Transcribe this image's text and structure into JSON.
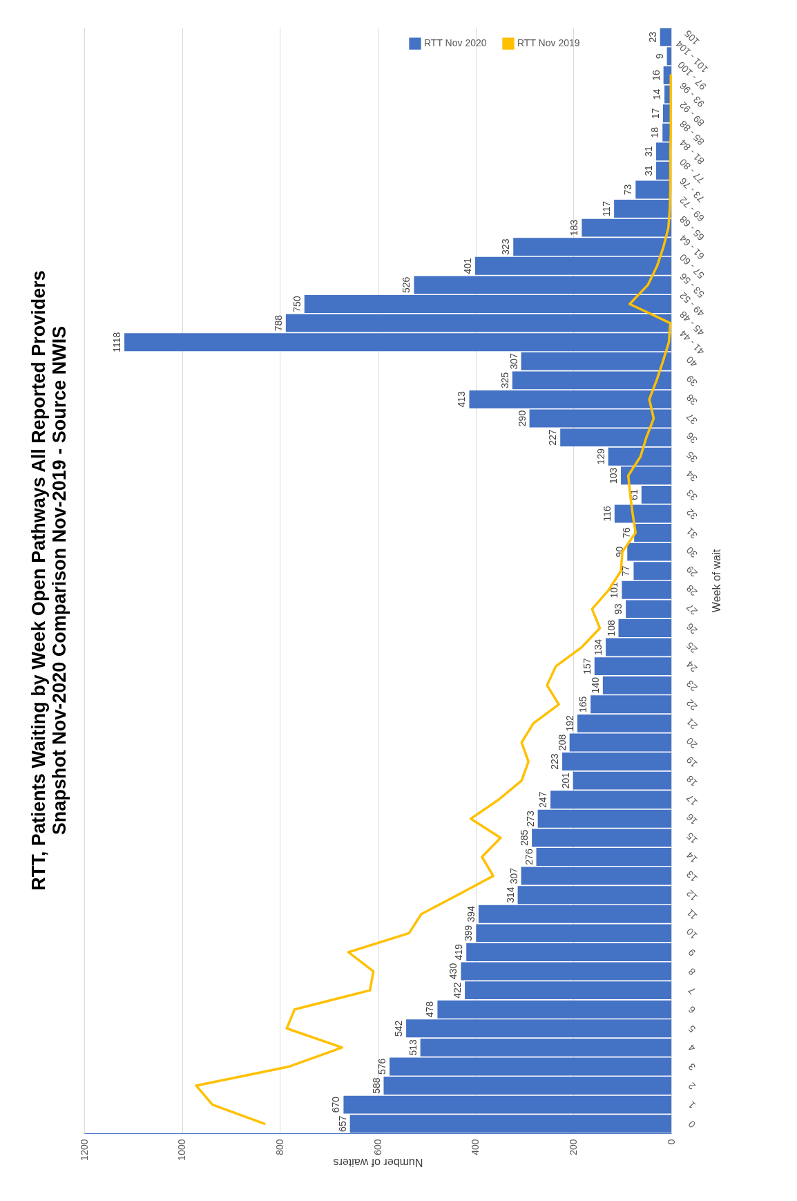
{
  "chart_data": {
    "type": "bar",
    "orientation": "horizontal",
    "title": "RTT, Patients Waiting by Week Open Pathways All Reported Providers",
    "subtitle": "Snapshot Nov-2020 Comparison Nov-2019 - Source NWIS",
    "xlabel": "Number of waiters",
    "ylabel": "Week of wait",
    "categories": [
      "105",
      "101 - 104",
      "97 - 100",
      "93 - 96",
      "89 - 92",
      "85 - 88",
      "81 - 84",
      "77 - 80",
      "73 - 76",
      "69 - 72",
      "65 - 68",
      "61 - 64",
      "57 - 60",
      "53 - 56",
      "49 - 52",
      "45 - 48",
      "41 - 44",
      "40",
      "39",
      "38",
      "37",
      "36",
      "35",
      "34",
      "33",
      "32",
      "31",
      "30",
      "29",
      "28",
      "27",
      "26",
      "25",
      "24",
      "23",
      "22",
      "21",
      "20",
      "19",
      "18",
      "17",
      "16",
      "15",
      "14",
      "13",
      "12",
      "11",
      "10",
      "9",
      "8",
      "7",
      "6",
      "5",
      "4",
      "3",
      "2",
      "1",
      "0"
    ],
    "series": [
      {
        "name": "RTT Nov 2020",
        "color": "#4472c4",
        "values": [
          23,
          9,
          16,
          14,
          17,
          18,
          31,
          31,
          73,
          117,
          183,
          323,
          401,
          526,
          750,
          788,
          1118,
          307,
          325,
          413,
          290,
          227,
          129,
          103,
          61,
          116,
          76,
          90,
          77,
          101,
          93,
          108,
          134,
          157,
          140,
          165,
          192,
          208,
          223,
          201,
          247,
          273,
          285,
          276,
          307,
          314,
          394,
          399,
          419,
          430,
          422,
          478,
          542,
          513,
          576,
          588,
          670,
          657
        ],
        "value_labels": [
          "23",
          "9",
          "16",
          "14",
          "17",
          "18",
          "31",
          "31",
          "73",
          "117",
          "183",
          "323",
          "401",
          "526",
          "750",
          "788",
          "1118",
          "307",
          "325",
          "413",
          "290",
          "227",
          "129",
          "103",
          "61",
          "116",
          "76",
          "90",
          "77",
          "101",
          "93",
          "108",
          "134",
          "157",
          "140",
          "165",
          "192",
          "208",
          "223",
          "201",
          "247",
          "273",
          "285",
          "276",
          "307",
          "314",
          "394",
          "399",
          "419",
          "430",
          "422",
          "478",
          "542",
          "513",
          "576",
          "588",
          "670",
          "657"
        ]
      },
      {
        "name": "RTT Nov 2019",
        "type": "line",
        "color": "#ffc000",
        "values": [
          null,
          null,
          1,
          1,
          1,
          1,
          2,
          2,
          2,
          3,
          6,
          16,
          29,
          48,
          85,
          2,
          5,
          17,
          30,
          45,
          36,
          51,
          63,
          88,
          84,
          79,
          73,
          100,
          103,
          128,
          162,
          146,
          183,
          236,
          254,
          230,
          282,
          306,
          292,
          306,
          353,
          410,
          349,
          387,
          364,
          437,
          511,
          536,
          660,
          609,
          616,
          770,
          786,
          673,
          781,
          971,
          938,
          832
        ]
      }
    ],
    "xlim": [
      1200,
      0
    ],
    "xticks": [
      1200,
      1000,
      800,
      600,
      400,
      200,
      0
    ],
    "grid": "x",
    "legend": "top"
  }
}
